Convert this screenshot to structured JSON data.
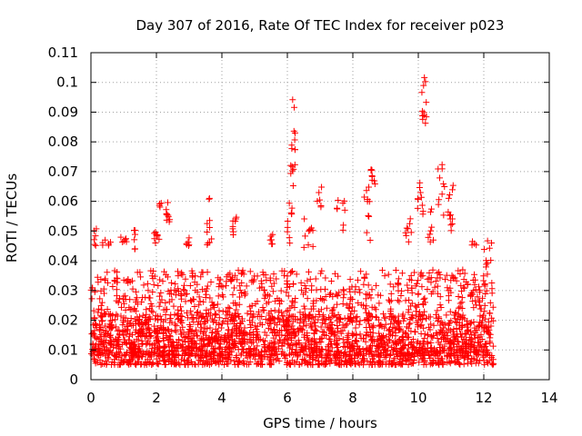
{
  "chart_data": {
    "type": "scatter",
    "title": "Day 307 of 2016, Rate Of TEC Index for receiver p023",
    "xlabel": "GPS time / hours",
    "ylabel": "ROTI / TECUs",
    "xlim": [
      0,
      14
    ],
    "ylim": [
      0,
      0.11
    ],
    "x_ticks": [
      "0",
      "2",
      "4",
      "6",
      "8",
      "10",
      "12",
      "14"
    ],
    "y_ticks": [
      "0",
      "0.01",
      "0.02",
      "0.03",
      "0.04",
      "0.05",
      "0.06",
      "0.07",
      "0.08",
      "0.09",
      "0.1",
      "0.11"
    ],
    "grid": true,
    "marker": "+",
    "series_color": "#ff0000",
    "series": [
      {
        "name": "ROTI",
        "bands": [
          {
            "x0": 0.0,
            "x1": 12.3,
            "ymin": 0.005,
            "ymax": 0.037,
            "count": 1900
          },
          {
            "x0": 0.0,
            "x1": 12.3,
            "ymin": 0.008,
            "ymax": 0.022,
            "count": 900
          }
        ],
        "clusters": [
          {
            "x0": 0.0,
            "x1": 0.2,
            "y0": 0.044,
            "y1": 0.052,
            "count": 6
          },
          {
            "x0": 0.35,
            "x1": 0.6,
            "y0": 0.045,
            "y1": 0.047,
            "count": 6
          },
          {
            "x0": 0.9,
            "x1": 1.1,
            "y0": 0.046,
            "y1": 0.048,
            "count": 6
          },
          {
            "x0": 1.3,
            "x1": 1.45,
            "y0": 0.043,
            "y1": 0.056,
            "count": 6
          },
          {
            "x0": 1.9,
            "x1": 2.1,
            "y0": 0.045,
            "y1": 0.05,
            "count": 8
          },
          {
            "x0": 2.05,
            "x1": 2.2,
            "y0": 0.058,
            "y1": 0.06,
            "count": 4
          },
          {
            "x0": 2.3,
            "x1": 2.45,
            "y0": 0.053,
            "y1": 0.06,
            "count": 10
          },
          {
            "x0": 2.9,
            "x1": 3.1,
            "y0": 0.045,
            "y1": 0.048,
            "count": 6
          },
          {
            "x0": 3.5,
            "x1": 3.7,
            "y0": 0.045,
            "y1": 0.055,
            "count": 8
          },
          {
            "x0": 3.6,
            "x1": 3.7,
            "y0": 0.06,
            "y1": 0.061,
            "count": 2
          },
          {
            "x0": 4.3,
            "x1": 4.45,
            "y0": 0.048,
            "y1": 0.056,
            "count": 8
          },
          {
            "x0": 5.45,
            "x1": 5.6,
            "y0": 0.045,
            "y1": 0.052,
            "count": 6
          },
          {
            "x0": 6.0,
            "x1": 6.15,
            "y0": 0.045,
            "y1": 0.062,
            "count": 10
          },
          {
            "x0": 6.1,
            "x1": 6.25,
            "y0": 0.065,
            "y1": 0.098,
            "count": 16
          },
          {
            "x0": 6.5,
            "x1": 6.8,
            "y0": 0.043,
            "y1": 0.055,
            "count": 10
          },
          {
            "x0": 6.9,
            "x1": 7.05,
            "y0": 0.058,
            "y1": 0.065,
            "count": 6
          },
          {
            "x0": 7.5,
            "x1": 7.8,
            "y0": 0.05,
            "y1": 0.061,
            "count": 8
          },
          {
            "x0": 8.35,
            "x1": 8.55,
            "y0": 0.045,
            "y1": 0.065,
            "count": 10
          },
          {
            "x0": 8.55,
            "x1": 8.7,
            "y0": 0.065,
            "y1": 0.076,
            "count": 8
          },
          {
            "x0": 9.6,
            "x1": 9.8,
            "y0": 0.046,
            "y1": 0.055,
            "count": 8
          },
          {
            "x0": 9.95,
            "x1": 10.15,
            "y0": 0.055,
            "y1": 0.072,
            "count": 10
          },
          {
            "x0": 10.1,
            "x1": 10.3,
            "y0": 0.085,
            "y1": 0.102,
            "count": 12
          },
          {
            "x0": 10.3,
            "x1": 10.5,
            "y0": 0.045,
            "y1": 0.06,
            "count": 8
          },
          {
            "x0": 10.6,
            "x1": 10.8,
            "y0": 0.055,
            "y1": 0.075,
            "count": 10
          },
          {
            "x0": 10.9,
            "x1": 11.1,
            "y0": 0.05,
            "y1": 0.066,
            "count": 12
          },
          {
            "x0": 11.6,
            "x1": 11.8,
            "y0": 0.045,
            "y1": 0.047,
            "count": 4
          },
          {
            "x0": 12.0,
            "x1": 12.3,
            "y0": 0.035,
            "y1": 0.049,
            "count": 10
          }
        ]
      }
    ]
  }
}
